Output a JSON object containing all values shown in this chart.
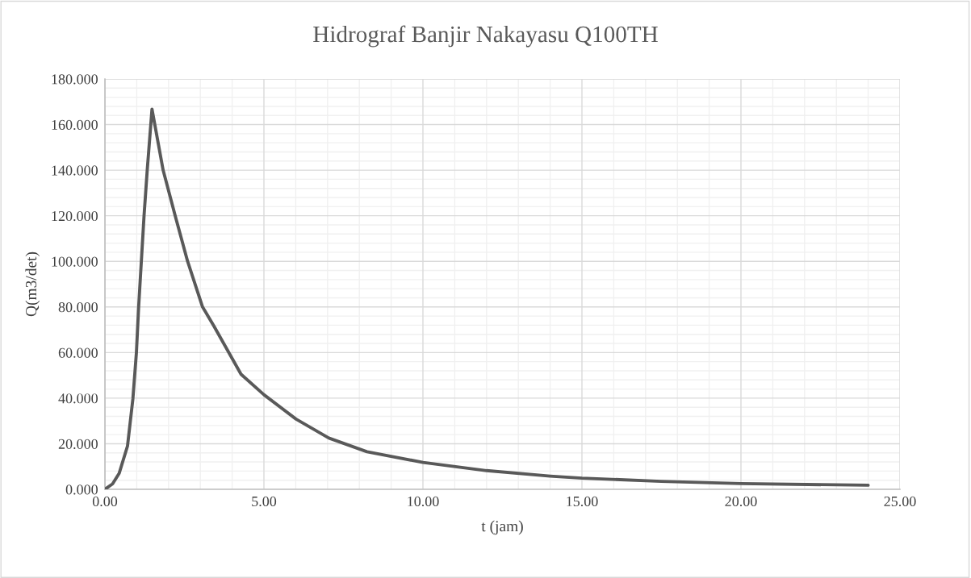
{
  "chart_data": {
    "type": "line",
    "title": "Hidrograf Banjir Nakayasu Q100TH",
    "xlabel": "t (jam)",
    "ylabel": "Q(m3/det)",
    "series": [
      {
        "color": "#595959",
        "x": [
          0,
          0.24,
          0.45,
          0.71,
          0.88,
          0.99,
          1.06,
          1.23,
          1.33,
          1.48,
          1.83,
          2.21,
          2.6,
          3.07,
          3.42,
          4.28,
          5,
          6.01,
          7.04,
          8.24,
          10,
          12,
          14,
          15,
          17.5,
          20,
          24
        ],
        "values": [
          0,
          2.4,
          7.1,
          19,
          39.8,
          60,
          80,
          120,
          140,
          166.8,
          140,
          120,
          100,
          80,
          71.8,
          50.5,
          41.5,
          30.8,
          22.5,
          16.5,
          11.8,
          8.2,
          5.8,
          4.9,
          3.5,
          2.5,
          1.8
        ]
      }
    ],
    "xlim": [
      0,
      25
    ],
    "ylim": [
      0,
      180
    ],
    "xticks": [
      {
        "value": 0,
        "label": "0.00"
      },
      {
        "value": 5,
        "label": "5.00"
      },
      {
        "value": 10,
        "label": "10.00"
      },
      {
        "value": 15,
        "label": "15.00"
      },
      {
        "value": 20,
        "label": "20.00"
      },
      {
        "value": 25,
        "label": "25.00"
      }
    ],
    "yticks": [
      {
        "value": 0,
        "label": "0.000"
      },
      {
        "value": 20,
        "label": "20.000"
      },
      {
        "value": 40,
        "label": "40.000"
      },
      {
        "value": 60,
        "label": "60.000"
      },
      {
        "value": 80,
        "label": "80.000"
      },
      {
        "value": 100,
        "label": "100.000"
      },
      {
        "value": 120,
        "label": "120.000"
      },
      {
        "value": 140,
        "label": "140.000"
      },
      {
        "value": 160,
        "label": "160.000"
      },
      {
        "value": 180,
        "label": "180.000"
      }
    ],
    "grid": true,
    "marker": "none",
    "line_style": "solid"
  }
}
